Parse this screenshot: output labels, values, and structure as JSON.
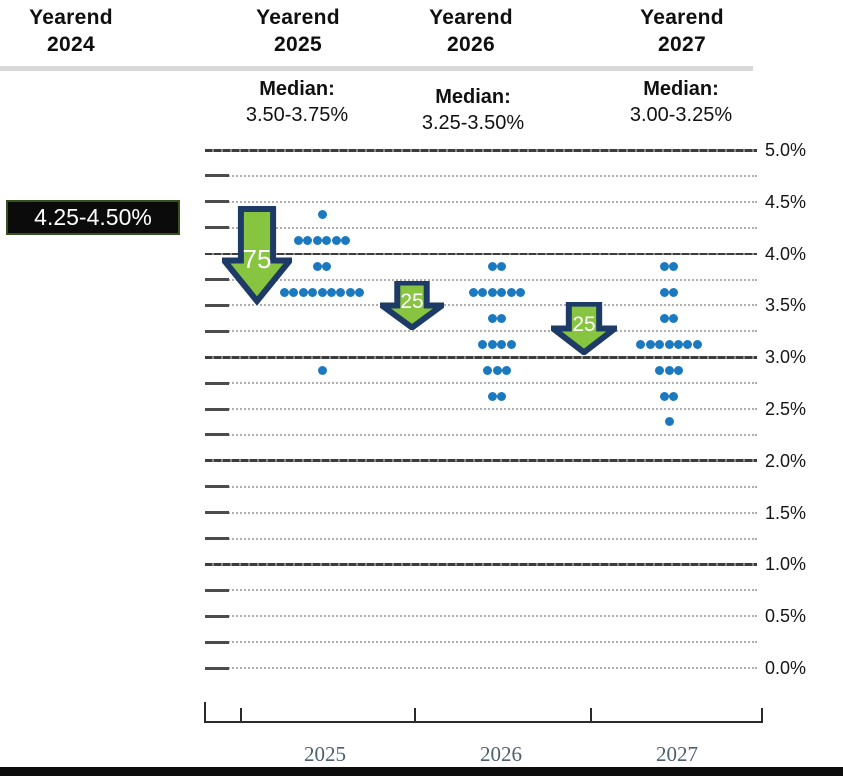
{
  "headers": {
    "columns": [
      {
        "line1": "Yearend",
        "line2": "2024"
      },
      {
        "line1": "Yearend",
        "line2": "2025"
      },
      {
        "line1": "Yearend",
        "line2": "2026"
      },
      {
        "line1": "Yearend",
        "line2": "2027"
      }
    ]
  },
  "chart_data": {
    "type": "scatter",
    "description": "Fed dot plot of yearend policy-rate projections with medians and rate-cut arrows",
    "y_axis": {
      "min": 0.0,
      "max": 5.0,
      "step": 0.25,
      "labels": [
        "5.0%",
        "4.5%",
        "4.0%",
        "3.5%",
        "3.0%",
        "2.5%",
        "2.0%",
        "1.5%",
        "1.0%",
        "0.5%",
        "0.0%"
      ],
      "label_values": [
        5.0,
        4.5,
        4.0,
        3.5,
        3.0,
        2.5,
        2.0,
        1.5,
        1.0,
        0.5,
        0.0
      ],
      "solid_lines": [
        5.0,
        4.0,
        3.0,
        2.0,
        1.0
      ],
      "grid": true
    },
    "x_axis": {
      "labels": [
        "2025",
        "2026",
        "2027"
      ]
    },
    "columns": [
      {
        "year": "2025",
        "median_label": "Median:",
        "median_range": "3.50-3.75%",
        "dots": [
          {
            "rate": 4.375,
            "count": 1
          },
          {
            "rate": 4.125,
            "count": 6
          },
          {
            "rate": 3.875,
            "count": 2
          },
          {
            "rate": 3.625,
            "count": 9
          },
          {
            "rate": 2.875,
            "count": 1
          }
        ]
      },
      {
        "year": "2026",
        "median_label": "Median:",
        "median_range": "3.25-3.50%",
        "dots": [
          {
            "rate": 3.875,
            "count": 2
          },
          {
            "rate": 3.625,
            "count": 6
          },
          {
            "rate": 3.375,
            "count": 2
          },
          {
            "rate": 3.125,
            "count": 4
          },
          {
            "rate": 2.875,
            "count": 3
          },
          {
            "rate": 2.625,
            "count": 2
          }
        ]
      },
      {
        "year": "2027",
        "median_label": "Median:",
        "median_range": "3.00-3.25%",
        "dots": [
          {
            "rate": 3.875,
            "count": 2
          },
          {
            "rate": 3.625,
            "count": 2
          },
          {
            "rate": 3.375,
            "count": 2
          },
          {
            "rate": 3.125,
            "count": 7
          },
          {
            "rate": 2.875,
            "count": 3
          },
          {
            "rate": 2.625,
            "count": 2
          },
          {
            "rate": 2.375,
            "count": 1
          }
        ]
      }
    ],
    "annotations": {
      "yearend_2024_median_box": "4.25-4.50%",
      "arrows": [
        {
          "label": "75",
          "meaning": "75bp cut from 4.375 toward 3.5"
        },
        {
          "label": "25",
          "meaning": "25bp cut from 3.625 toward 3.25"
        },
        {
          "label": "25",
          "meaning": "25bp cut from 3.5 toward 3.0"
        }
      ]
    },
    "colors": {
      "dot": "#1b79bf",
      "arrow_fill": "#87c440",
      "arrow_border": "#1e3a66",
      "box_bg": "#0b0b0b",
      "box_border": "#36521f",
      "box_text": "#ffffff"
    }
  }
}
